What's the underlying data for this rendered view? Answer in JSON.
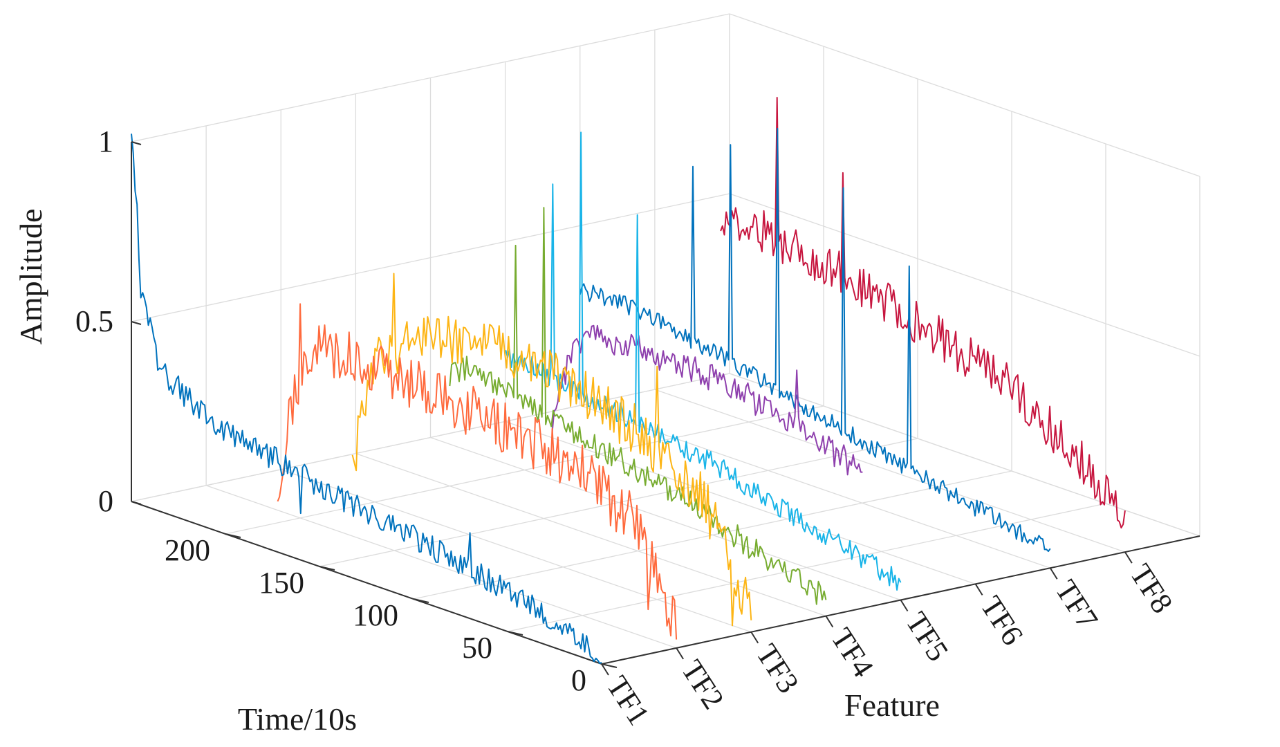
{
  "chart_data": {
    "type": "line",
    "projection": "3d",
    "xlabel": "Time/10s",
    "ylabel": "Feature",
    "zlabel": "Amplitude",
    "xlim": [
      0,
      250
    ],
    "zlim": [
      0,
      1
    ],
    "time_ticks": [
      {
        "value": 0,
        "label": "0"
      },
      {
        "value": 50,
        "label": "50"
      },
      {
        "value": 100,
        "label": "100"
      },
      {
        "value": 150,
        "label": "150"
      },
      {
        "value": 200,
        "label": "200"
      }
    ],
    "amplitude_ticks": [
      {
        "value": 0,
        "label": "0"
      },
      {
        "value": 0.5,
        "label": "0.5"
      },
      {
        "value": 1,
        "label": "1"
      }
    ],
    "features": [
      "TF1",
      "TF2",
      "TF3",
      "TF4",
      "TF5",
      "TF6",
      "TF7",
      "TF8"
    ],
    "series": [
      {
        "name": "TF1",
        "feature_index": 0,
        "color": "#0072BD",
        "t_range": [
          0,
          250
        ],
        "anchors": [
          [
            0,
            0.02
          ],
          [
            25,
            0.08
          ],
          [
            55,
            0.12
          ],
          [
            90,
            0.16
          ],
          [
            130,
            0.2
          ],
          [
            170,
            0.25
          ],
          [
            210,
            0.3
          ],
          [
            235,
            0.4
          ],
          [
            245,
            0.6
          ],
          [
            248,
            0.9
          ],
          [
            250,
            0.99
          ]
        ],
        "noise": 0.035,
        "spikes": [
          [
            70,
            0.12
          ],
          [
            160,
            -0.14
          ]
        ]
      },
      {
        "name": "TF2",
        "feature_index": 1,
        "color": "#FF6A3D",
        "t_range": [
          0,
          212
        ],
        "anchors": [
          [
            0,
            0.05
          ],
          [
            20,
            0.3
          ],
          [
            50,
            0.4
          ],
          [
            90,
            0.45
          ],
          [
            130,
            0.48
          ],
          [
            170,
            0.5
          ],
          [
            195,
            0.48
          ],
          [
            205,
            0.3
          ],
          [
            212,
            0.05
          ]
        ],
        "noise": 0.075,
        "spikes": [
          [
            15,
            -0.2
          ],
          [
            200,
            0.25
          ]
        ]
      },
      {
        "name": "TF3",
        "feature_index": 2,
        "color": "#FDB515",
        "t_range": [
          0,
          212
        ],
        "anchors": [
          [
            0,
            0.05
          ],
          [
            25,
            0.32
          ],
          [
            60,
            0.45
          ],
          [
            100,
            0.52
          ],
          [
            140,
            0.55
          ],
          [
            175,
            0.5
          ],
          [
            200,
            0.4
          ],
          [
            212,
            0.08
          ]
        ],
        "noise": 0.07,
        "spikes": [
          [
            50,
            0.28
          ],
          [
            10,
            -0.3
          ],
          [
            190,
            0.2
          ]
        ]
      },
      {
        "name": "TF4",
        "feature_index": 3,
        "color": "#77AC30",
        "t_range": [
          0,
          200
        ],
        "anchors": [
          [
            0,
            0.05
          ],
          [
            40,
            0.12
          ],
          [
            80,
            0.2
          ],
          [
            120,
            0.25
          ],
          [
            160,
            0.3
          ],
          [
            190,
            0.35
          ],
          [
            200,
            0.3
          ]
        ],
        "noise": 0.035,
        "spikes": [
          [
            150,
            0.55
          ],
          [
            165,
            0.45
          ]
        ]
      },
      {
        "name": "TF5",
        "feature_index": 4,
        "color": "#19B4E8",
        "t_range": [
          0,
          210
        ],
        "anchors": [
          [
            0,
            0.05
          ],
          [
            50,
            0.12
          ],
          [
            100,
            0.2
          ],
          [
            150,
            0.25
          ],
          [
            200,
            0.3
          ],
          [
            210,
            0.3
          ]
        ],
        "noise": 0.03,
        "spikes": [
          [
            140,
            0.6
          ],
          [
            170,
            0.75
          ],
          [
            185,
            0.55
          ]
        ]
      },
      {
        "name": "TF6",
        "feature_index": 5,
        "color": "#8E3FAD",
        "t_range": [
          60,
          225
        ],
        "anchors": [
          [
            60,
            0.2
          ],
          [
            100,
            0.28
          ],
          [
            150,
            0.33
          ],
          [
            200,
            0.33
          ],
          [
            215,
            0.25
          ],
          [
            225,
            0.05
          ]
        ],
        "noise": 0.04,
        "spikes": [
          [
            95,
            0.15
          ]
        ]
      },
      {
        "name": "TF7",
        "feature_index": 6,
        "color": "#0072BD",
        "t_range": [
          0,
          250
        ],
        "anchors": [
          [
            0,
            0.05
          ],
          [
            60,
            0.12
          ],
          [
            120,
            0.2
          ],
          [
            180,
            0.28
          ],
          [
            230,
            0.33
          ],
          [
            250,
            0.32
          ]
        ],
        "noise": 0.025,
        "spikes": [
          [
            75,
            0.55
          ],
          [
            110,
            0.65
          ],
          [
            145,
            0.75
          ],
          [
            170,
            0.6
          ],
          [
            190,
            0.5
          ]
        ]
      },
      {
        "name": "TF8",
        "feature_index": 7,
        "color": "#C7163F",
        "t_range": [
          0,
          215
        ],
        "anchors": [
          [
            0,
            0.1
          ],
          [
            20,
            0.2
          ],
          [
            60,
            0.35
          ],
          [
            100,
            0.42
          ],
          [
            150,
            0.5
          ],
          [
            200,
            0.55
          ],
          [
            215,
            0.55
          ]
        ],
        "noise": 0.06,
        "spikes": [
          [
            185,
            0.35
          ],
          [
            150,
            0.25
          ]
        ]
      }
    ]
  }
}
